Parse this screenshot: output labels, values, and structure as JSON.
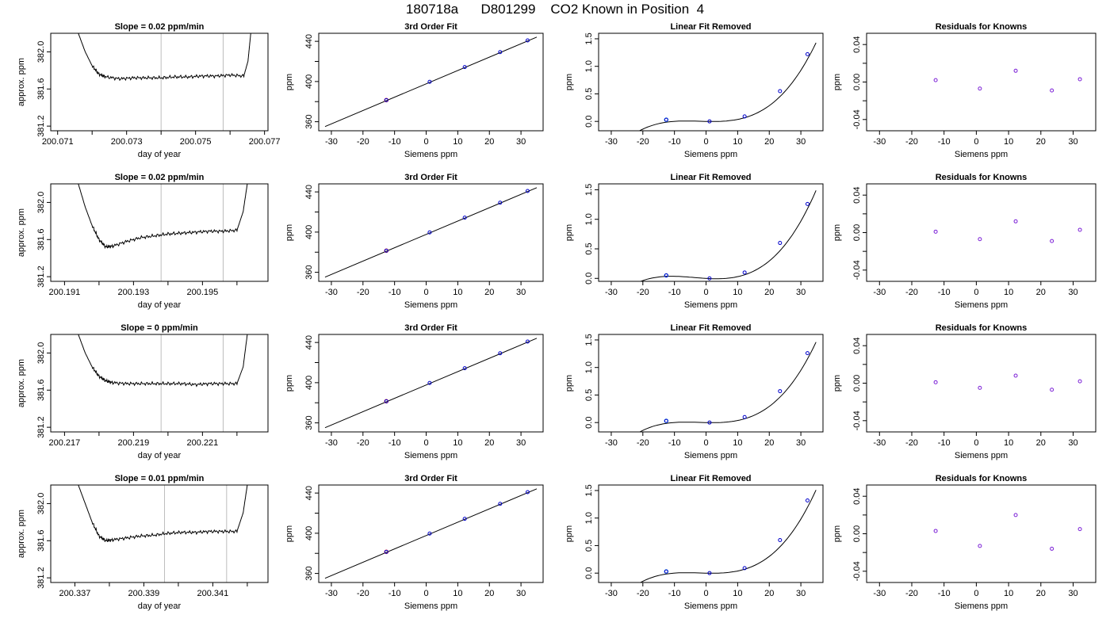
{
  "main_title": "180718a      D801299    CO2 Known in Position  4",
  "colors": {
    "trace": "#000000",
    "gray_line": "#bdbdbd",
    "fit_points": "#0000cc",
    "highlight": "#29a3e6",
    "resid_points": "#7b1fd6",
    "red_point": "#ff3030"
  },
  "chart_data": [
    {
      "row": 0,
      "col": 0,
      "type": "line",
      "title": "Slope =  0.02  ppm/min",
      "xlabel": "day of year",
      "ylabel": "approx. ppm",
      "xticks": [
        200.071,
        200.072,
        200.073,
        200.074,
        200.075,
        200.076,
        200.077
      ],
      "xtick_labels": [
        "200.071",
        "",
        "200.073",
        "",
        "200.075",
        "",
        "200.077"
      ],
      "yticks": [
        381.2,
        381.6,
        382.0
      ],
      "ytick_labels": [
        "381.2",
        "381.6",
        "382.0"
      ],
      "xlim": [
        200.0708,
        200.0771
      ],
      "ylim": [
        381.15,
        382.2
      ],
      "vlines": [
        200.074,
        200.0758
      ],
      "series": [
        {
          "x": [
            200.0716,
            200.0718,
            200.072,
            200.0722,
            200.0724,
            200.0728,
            200.0732,
            200.0736,
            200.074,
            200.0744,
            200.0748,
            200.0752,
            200.0756,
            200.076,
            200.0764,
            200.07652,
            200.0766
          ],
          "y": [
            382.2,
            382.0,
            381.85,
            381.76,
            381.73,
            381.71,
            381.72,
            381.72,
            381.72,
            381.73,
            381.73,
            381.74,
            381.74,
            381.75,
            381.74,
            381.9,
            382.2
          ]
        }
      ]
    },
    {
      "row": 0,
      "col": 1,
      "type": "scatter",
      "title": "3rd Order Fit",
      "xlabel": "Siemens ppm",
      "ylabel": "ppm",
      "xticks": [
        -30,
        -20,
        -10,
        0,
        10,
        20,
        30
      ],
      "xtick_labels": [
        "-30",
        "-20",
        "-10",
        "0",
        "10",
        "20",
        "30"
      ],
      "yticks": [
        360,
        380,
        400,
        420,
        440
      ],
      "ytick_labels": [
        "360",
        "",
        "400",
        "",
        "440"
      ],
      "xlim": [
        -34,
        37
      ],
      "ylim": [
        351,
        448
      ],
      "fit_line": {
        "x": [
          -32,
          35
        ],
        "y": [
          355.2,
          444.2
        ]
      },
      "points": {
        "x": [
          -12.6,
          1.1,
          12.2,
          23.4,
          32.1
        ],
        "y": [
          381.5,
          399.7,
          414.4,
          429.3,
          440.9
        ]
      }
    },
    {
      "row": 0,
      "col": 2,
      "type": "scatter",
      "title": "Linear Fit Removed",
      "xlabel": "Siemens ppm",
      "ylabel": "ppm",
      "xticks": [
        -30,
        -20,
        -10,
        0,
        10,
        20,
        30
      ],
      "xtick_labels": [
        "-30",
        "-20",
        "-10",
        "0",
        "10",
        "20",
        "30"
      ],
      "yticks": [
        0,
        0.5,
        1.0,
        1.5
      ],
      "ytick_labels": [
        "0.0",
        "0.5",
        "1.0",
        "1.5"
      ],
      "xlim": [
        -34,
        37
      ],
      "ylim": [
        -0.17,
        1.6
      ],
      "curve": {
        "a0": 0.0,
        "a1": -0.0012,
        "a2": 0.000183,
        "a3": 2.96e-05,
        "xmin": -32,
        "xmax": 34.8
      },
      "points": {
        "x": [
          -12.6,
          1.1,
          12.2,
          23.4,
          32.1
        ],
        "y": [
          0.03,
          0.0,
          0.09,
          0.55,
          1.22
        ]
      }
    },
    {
      "row": 0,
      "col": 3,
      "type": "scatter",
      "title": "Residuals for Knowns",
      "xlabel": "Siemens ppm",
      "ylabel": "ppm",
      "xticks": [
        -30,
        -20,
        -10,
        0,
        10,
        20,
        30
      ],
      "xtick_labels": [
        "-30",
        "-20",
        "-10",
        "0",
        "10",
        "20",
        "30"
      ],
      "yticks": [
        -0.04,
        -0.02,
        0,
        0.02,
        0.04
      ],
      "ytick_labels": [
        "-0.04",
        "",
        "0.00",
        "",
        "0.04"
      ],
      "xlim": [
        -34,
        37
      ],
      "ylim": [
        -0.052,
        0.052
      ],
      "points": {
        "x": [
          -12.6,
          1.1,
          12.2,
          23.4,
          32.1
        ],
        "y": [
          0.002,
          -0.007,
          0.012,
          -0.009,
          0.003
        ]
      }
    },
    {
      "row": 1,
      "col": 0,
      "type": "line",
      "title": "Slope =  0.02  ppm/min",
      "xlabel": "day of year",
      "ylabel": "approx. ppm",
      "xticks": [
        200.191,
        200.192,
        200.193,
        200.194,
        200.195,
        200.196
      ],
      "xtick_labels": [
        "200.191",
        "",
        "200.193",
        "",
        "200.195",
        ""
      ],
      "yticks": [
        381.2,
        381.6,
        382.0
      ],
      "ytick_labels": [
        "381.2",
        "381.6",
        "382.0"
      ],
      "xlim": [
        200.1906,
        200.1969
      ],
      "ylim": [
        381.15,
        382.2
      ],
      "vlines": [
        200.1938,
        200.1956
      ],
      "series": [
        {
          "x": [
            200.1914,
            200.1916,
            200.1918,
            200.192,
            200.1922,
            200.1924,
            200.1928,
            200.1932,
            200.1936,
            200.194,
            200.1944,
            200.1948,
            200.1952,
            200.1956,
            200.196,
            200.19618,
            200.1963
          ],
          "y": [
            382.2,
            381.95,
            381.75,
            381.6,
            381.52,
            381.53,
            381.58,
            381.62,
            381.64,
            381.66,
            381.67,
            381.68,
            381.69,
            381.69,
            381.7,
            381.9,
            382.2
          ]
        }
      ]
    },
    {
      "row": 1,
      "col": 1,
      "type": "scatter",
      "title": "3rd Order Fit",
      "xlabel": "Siemens ppm",
      "ylabel": "ppm",
      "xticks": [
        -30,
        -20,
        -10,
        0,
        10,
        20,
        30
      ],
      "xtick_labels": [
        "-30",
        "-20",
        "-10",
        "0",
        "10",
        "20",
        "30"
      ],
      "yticks": [
        360,
        380,
        400,
        420,
        440
      ],
      "ytick_labels": [
        "360",
        "",
        "400",
        "",
        "440"
      ],
      "xlim": [
        -34,
        37
      ],
      "ylim": [
        351,
        448
      ],
      "fit_line": {
        "x": [
          -32,
          35
        ],
        "y": [
          355.2,
          444.2
        ]
      },
      "points": {
        "x": [
          -12.6,
          1.1,
          12.2,
          23.4,
          32.1
        ],
        "y": [
          381.5,
          399.7,
          414.4,
          429.3,
          440.9
        ]
      }
    },
    {
      "row": 1,
      "col": 2,
      "type": "scatter",
      "title": "Linear Fit Removed",
      "xlabel": "Siemens ppm",
      "ylabel": "ppm",
      "xticks": [
        -30,
        -20,
        -10,
        0,
        10,
        20,
        30
      ],
      "xtick_labels": [
        "-30",
        "-20",
        "-10",
        "0",
        "10",
        "20",
        "30"
      ],
      "yticks": [
        0,
        0.5,
        1.0,
        1.5
      ],
      "ytick_labels": [
        "0.0",
        "0.5",
        "1.0",
        "1.5"
      ],
      "xlim": [
        -34,
        37
      ],
      "ylim": [
        -0.05,
        1.6
      ],
      "curve": {
        "a0": 0.0,
        "a1": -0.0032,
        "a2": 0.000322,
        "a3": 2.87e-05,
        "xmin": -32,
        "xmax": 34.8
      },
      "points": {
        "x": [
          -12.6,
          1.1,
          12.2,
          23.4,
          32.1
        ],
        "y": [
          0.05,
          0.0,
          0.1,
          0.6,
          1.26
        ]
      }
    },
    {
      "row": 1,
      "col": 3,
      "type": "scatter",
      "title": "Residuals for Knowns",
      "xlabel": "Siemens ppm",
      "ylabel": "ppm",
      "xticks": [
        -30,
        -20,
        -10,
        0,
        10,
        20,
        30
      ],
      "xtick_labels": [
        "-30",
        "-20",
        "-10",
        "0",
        "10",
        "20",
        "30"
      ],
      "yticks": [
        -0.04,
        -0.02,
        0,
        0.02,
        0.04
      ],
      "ytick_labels": [
        "-0.04",
        "",
        "0.00",
        "",
        "0.04"
      ],
      "xlim": [
        -34,
        37
      ],
      "ylim": [
        -0.052,
        0.052
      ],
      "points": {
        "x": [
          -12.6,
          1.1,
          12.2,
          23.4,
          32.1
        ],
        "y": [
          0.001,
          -0.007,
          0.012,
          -0.009,
          0.003
        ]
      }
    },
    {
      "row": 2,
      "col": 0,
      "type": "line",
      "title": "Slope =  0  ppm/min",
      "xlabel": "day of year",
      "ylabel": "approx. ppm",
      "xticks": [
        200.217,
        200.218,
        200.219,
        200.22,
        200.221,
        200.222
      ],
      "xtick_labels": [
        "200.217",
        "",
        "200.219",
        "",
        "200.221",
        ""
      ],
      "yticks": [
        381.2,
        381.6,
        382.0
      ],
      "ytick_labels": [
        "381.2",
        "381.6",
        "382.0"
      ],
      "xlim": [
        200.2166,
        200.2229
      ],
      "ylim": [
        381.15,
        382.2
      ],
      "vlines": [
        200.2198,
        200.2216
      ],
      "series": [
        {
          "x": [
            200.2174,
            200.2176,
            200.2178,
            200.218,
            200.2182,
            200.2184,
            200.2188,
            200.2192,
            200.2196,
            200.22,
            200.2204,
            200.2208,
            200.2212,
            200.2216,
            200.222,
            200.22218,
            200.2223
          ],
          "y": [
            382.2,
            382.0,
            381.85,
            381.75,
            381.7,
            381.68,
            381.67,
            381.67,
            381.67,
            381.67,
            381.67,
            381.66,
            381.67,
            381.67,
            381.67,
            381.85,
            382.2
          ]
        }
      ]
    },
    {
      "row": 2,
      "col": 1,
      "type": "scatter",
      "title": "3rd Order Fit",
      "xlabel": "Siemens ppm",
      "ylabel": "ppm",
      "xticks": [
        -30,
        -20,
        -10,
        0,
        10,
        20,
        30
      ],
      "xtick_labels": [
        "-30",
        "-20",
        "-10",
        "0",
        "10",
        "20",
        "30"
      ],
      "yticks": [
        360,
        380,
        400,
        420,
        440
      ],
      "ytick_labels": [
        "360",
        "",
        "400",
        "",
        "440"
      ],
      "xlim": [
        -34,
        37
      ],
      "ylim": [
        351,
        448
      ],
      "fit_line": {
        "x": [
          -32,
          35
        ],
        "y": [
          355.2,
          444.2
        ]
      },
      "points": {
        "x": [
          -12.6,
          1.1,
          12.2,
          23.4,
          32.1
        ],
        "y": [
          381.5,
          399.7,
          414.4,
          429.3,
          440.9
        ]
      }
    },
    {
      "row": 2,
      "col": 2,
      "type": "scatter",
      "title": "Linear Fit Removed",
      "xlabel": "Siemens ppm",
      "ylabel": "ppm",
      "xticks": [
        -30,
        -20,
        -10,
        0,
        10,
        20,
        30
      ],
      "xtick_labels": [
        "-30",
        "-20",
        "-10",
        "0",
        "10",
        "20",
        "30"
      ],
      "yticks": [
        0,
        0.5,
        1.0,
        1.5
      ],
      "ytick_labels": [
        "0.0",
        "0.5",
        "1.0",
        "1.5"
      ],
      "xlim": [
        -34,
        37
      ],
      "ylim": [
        -0.17,
        1.6
      ],
      "curve": {
        "a0": 0.0,
        "a1": -0.0012,
        "a2": 0.000189,
        "a3": 3.02e-05,
        "xmin": -32,
        "xmax": 34.8
      },
      "points": {
        "x": [
          -12.6,
          1.1,
          12.2,
          23.4,
          32.1
        ],
        "y": [
          0.03,
          0.0,
          0.1,
          0.57,
          1.26
        ]
      }
    },
    {
      "row": 2,
      "col": 3,
      "type": "scatter",
      "title": "Residuals for Knowns",
      "xlabel": "Siemens ppm",
      "ylabel": "ppm",
      "xticks": [
        -30,
        -20,
        -10,
        0,
        10,
        20,
        30
      ],
      "xtick_labels": [
        "-30",
        "-20",
        "-10",
        "0",
        "10",
        "20",
        "30"
      ],
      "yticks": [
        -0.04,
        -0.02,
        0,
        0.02,
        0.04
      ],
      "ytick_labels": [
        "-0.04",
        "",
        "0.00",
        "",
        "0.04"
      ],
      "xlim": [
        -34,
        37
      ],
      "ylim": [
        -0.052,
        0.052
      ],
      "points": {
        "x": [
          -12.6,
          1.1,
          12.2,
          23.4,
          32.1
        ],
        "y": [
          0.001,
          -0.005,
          0.008,
          -0.007,
          0.002
        ]
      }
    },
    {
      "row": 3,
      "col": 0,
      "type": "line",
      "title": "Slope =  0.01  ppm/min",
      "xlabel": "day of year",
      "ylabel": "approx. ppm",
      "xticks": [
        200.337,
        200.338,
        200.339,
        200.34,
        200.341,
        200.342
      ],
      "xtick_labels": [
        "200.337",
        "",
        "200.339",
        "",
        "200.341",
        ""
      ],
      "yticks": [
        381.2,
        381.6,
        382.0
      ],
      "ytick_labels": [
        "381.2",
        "381.6",
        "382.0"
      ],
      "xlim": [
        200.3363,
        200.3426
      ],
      "ylim": [
        381.15,
        382.2
      ],
      "vlines": [
        200.3396,
        200.3414
      ],
      "series": [
        {
          "x": [
            200.3371,
            200.3373,
            200.3375,
            200.3377,
            200.3379,
            200.3381,
            200.3385,
            200.3389,
            200.3393,
            200.3397,
            200.3401,
            200.3405,
            200.3409,
            200.3413,
            200.3417,
            200.34188,
            200.342
          ],
          "y": [
            382.2,
            382.0,
            381.8,
            381.65,
            381.6,
            381.61,
            381.63,
            381.65,
            381.66,
            381.68,
            381.69,
            381.69,
            381.7,
            381.7,
            381.7,
            381.9,
            382.2
          ]
        }
      ]
    },
    {
      "row": 3,
      "col": 1,
      "type": "scatter",
      "title": "3rd Order Fit",
      "xlabel": "Siemens ppm",
      "ylabel": "ppm",
      "xticks": [
        -30,
        -20,
        -10,
        0,
        10,
        20,
        30
      ],
      "xtick_labels": [
        "-30",
        "-20",
        "-10",
        "0",
        "10",
        "20",
        "30"
      ],
      "yticks": [
        360,
        380,
        400,
        420,
        440
      ],
      "ytick_labels": [
        "360",
        "",
        "400",
        "",
        "440"
      ],
      "xlim": [
        -34,
        37
      ],
      "ylim": [
        351,
        448
      ],
      "fit_line": {
        "x": [
          -32,
          35
        ],
        "y": [
          355.2,
          444.2
        ]
      },
      "points": {
        "x": [
          -12.6,
          1.1,
          12.2,
          23.4,
          32.1
        ],
        "y": [
          381.5,
          399.7,
          414.4,
          429.3,
          440.9
        ]
      }
    },
    {
      "row": 3,
      "col": 2,
      "type": "scatter",
      "title": "Linear Fit Removed",
      "xlabel": "Siemens ppm",
      "ylabel": "ppm",
      "xticks": [
        -30,
        -20,
        -10,
        0,
        10,
        20,
        30
      ],
      "xtick_labels": [
        "-30",
        "-20",
        "-10",
        "0",
        "10",
        "20",
        "30"
      ],
      "yticks": [
        0,
        0.5,
        1.0,
        1.5
      ],
      "ytick_labels": [
        "0.0",
        "0.5",
        "1.0",
        "1.5"
      ],
      "xlim": [
        -34,
        37
      ],
      "ylim": [
        -0.17,
        1.6
      ],
      "curve": {
        "a0": 0.0,
        "a1": -0.0012,
        "a2": 0.000195,
        "a3": 3.12e-05,
        "xmin": -32,
        "xmax": 34.8
      },
      "points": {
        "x": [
          -12.6,
          1.1,
          12.2,
          23.4,
          32.1
        ],
        "y": [
          0.03,
          0.0,
          0.09,
          0.6,
          1.32
        ]
      }
    },
    {
      "row": 3,
      "col": 3,
      "type": "scatter",
      "title": "Residuals for Knowns",
      "xlabel": "Siemens ppm",
      "ylabel": "ppm",
      "xticks": [
        -30,
        -20,
        -10,
        0,
        10,
        20,
        30
      ],
      "xtick_labels": [
        "-30",
        "-20",
        "-10",
        "0",
        "10",
        "20",
        "30"
      ],
      "yticks": [
        -0.04,
        -0.02,
        0,
        0.02,
        0.04
      ],
      "ytick_labels": [
        "-0.04",
        "",
        "0.00",
        "",
        "0.04"
      ],
      "xlim": [
        -34,
        37
      ],
      "ylim": [
        -0.052,
        0.052
      ],
      "points": {
        "x": [
          -12.6,
          1.1,
          12.2,
          23.4,
          32.1
        ],
        "y": [
          0.003,
          -0.013,
          0.02,
          -0.016,
          0.005
        ]
      }
    }
  ]
}
